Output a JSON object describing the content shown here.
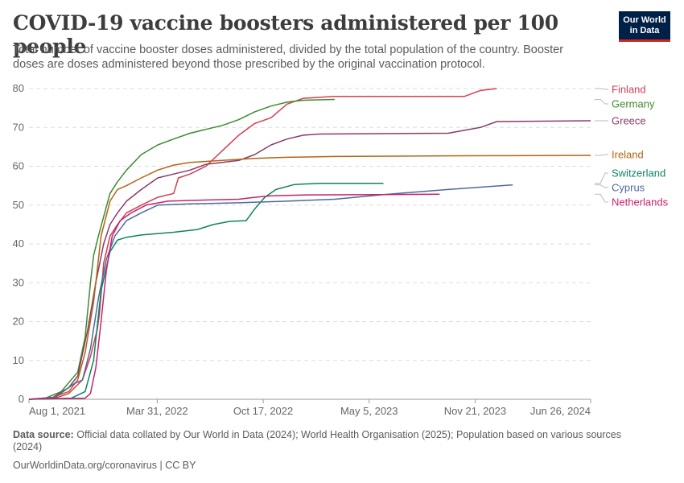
{
  "header": {
    "title": "COVID-19 vaccine boosters administered per 100 people",
    "subtitle": "Total number of vaccine booster doses administered, divided by the total population of the country. Booster doses are doses administered beyond those prescribed by the original vaccination protocol."
  },
  "logo": {
    "line1": "Our World",
    "line2": "in Data",
    "bg": "#002147",
    "accent": "#ce261e"
  },
  "footer": {
    "source_label": "Data source:",
    "source_text": "Official data collated by Our World in Data (2024); World Health Organisation (2025); Population based on various sources (2024)",
    "link": "OurWorldinData.org/coronavirus | CC BY"
  },
  "chart_data": {
    "type": "line",
    "x_axis": {
      "type": "date",
      "range": [
        "2021-08-01",
        "2024-06-26"
      ],
      "ticks": [
        "2021-08-01",
        "2022-03-31",
        "2022-10-17",
        "2023-05-05",
        "2023-11-21",
        "2024-06-26"
      ],
      "tick_labels": [
        "Aug 1, 2021",
        "Mar 31, 2022",
        "Oct 17, 2022",
        "May 5, 2023",
        "Nov 21, 2023",
        "Jun 26, 2024"
      ]
    },
    "y_axis": {
      "range": [
        0,
        80
      ],
      "ticks": [
        0,
        10,
        20,
        30,
        40,
        50,
        60,
        70,
        80
      ]
    },
    "grid": "horizontal-dashed",
    "legend": "right",
    "series": [
      {
        "name": "Finland",
        "color": "#d73c50",
        "points": [
          [
            "2021-08-01",
            0
          ],
          [
            "2021-09-20",
            0.3
          ],
          [
            "2021-10-15",
            1.5
          ],
          [
            "2021-11-10",
            5
          ],
          [
            "2021-11-25",
            11
          ],
          [
            "2021-12-08",
            18
          ],
          [
            "2021-12-12",
            22
          ],
          [
            "2021-12-20",
            35
          ],
          [
            "2022-01-01",
            42
          ],
          [
            "2022-01-15",
            45
          ],
          [
            "2022-02-01",
            48
          ],
          [
            "2022-03-01",
            50
          ],
          [
            "2022-04-01",
            52
          ],
          [
            "2022-05-01",
            53
          ],
          [
            "2022-05-10",
            57
          ],
          [
            "2022-06-01",
            58
          ],
          [
            "2022-07-01",
            60
          ],
          [
            "2022-08-01",
            64
          ],
          [
            "2022-09-01",
            68
          ],
          [
            "2022-10-01",
            71
          ],
          [
            "2022-11-01",
            72.5
          ],
          [
            "2022-12-01",
            76
          ],
          [
            "2023-01-01",
            77.5
          ],
          [
            "2023-03-01",
            78
          ],
          [
            "2023-11-01",
            78
          ],
          [
            "2023-12-01",
            79.5
          ],
          [
            "2024-01-01",
            80
          ]
        ]
      },
      {
        "name": "Germany",
        "color": "#3c8c2c",
        "points": [
          [
            "2021-08-01",
            0
          ],
          [
            "2021-09-01",
            0.3
          ],
          [
            "2021-10-01",
            2
          ],
          [
            "2021-11-01",
            7
          ],
          [
            "2021-11-15",
            16
          ],
          [
            "2021-11-25",
            30
          ],
          [
            "2021-12-01",
            37
          ],
          [
            "2021-12-10",
            42
          ],
          [
            "2021-12-20",
            47
          ],
          [
            "2022-01-01",
            53
          ],
          [
            "2022-01-15",
            56
          ],
          [
            "2022-02-01",
            59
          ],
          [
            "2022-03-01",
            63
          ],
          [
            "2022-04-01",
            65.5
          ],
          [
            "2022-05-01",
            67
          ],
          [
            "2022-06-01",
            68.5
          ],
          [
            "2022-07-01",
            69.5
          ],
          [
            "2022-08-01",
            70.5
          ],
          [
            "2022-09-01",
            72
          ],
          [
            "2022-10-01",
            74
          ],
          [
            "2022-11-01",
            75.5
          ],
          [
            "2022-12-01",
            76.5
          ],
          [
            "2023-01-01",
            77
          ],
          [
            "2023-03-01",
            77.2
          ]
        ]
      },
      {
        "name": "Greece",
        "color": "#883c6c",
        "points": [
          [
            "2021-08-01",
            0
          ],
          [
            "2021-09-15",
            0.5
          ],
          [
            "2021-10-15",
            3
          ],
          [
            "2021-11-01",
            6
          ],
          [
            "2021-11-20",
            18
          ],
          [
            "2021-12-05",
            30
          ],
          [
            "2021-12-20",
            40
          ],
          [
            "2022-01-01",
            45
          ],
          [
            "2022-01-15",
            48
          ],
          [
            "2022-02-01",
            51
          ],
          [
            "2022-03-01",
            54
          ],
          [
            "2022-04-01",
            57
          ],
          [
            "2022-05-01",
            58
          ],
          [
            "2022-06-01",
            59
          ],
          [
            "2022-07-01",
            60.5
          ],
          [
            "2022-08-01",
            61
          ],
          [
            "2022-09-01",
            61.5
          ],
          [
            "2022-10-01",
            63
          ],
          [
            "2022-11-01",
            65.5
          ],
          [
            "2022-12-01",
            67
          ],
          [
            "2023-01-01",
            68
          ],
          [
            "2023-02-01",
            68.3
          ],
          [
            "2023-06-01",
            68.4
          ],
          [
            "2023-10-01",
            68.5
          ],
          [
            "2023-12-01",
            70
          ],
          [
            "2024-01-01",
            71.5
          ],
          [
            "2024-06-26",
            71.7
          ]
        ]
      },
      {
        "name": "Ireland",
        "color": "#b46414",
        "points": [
          [
            "2021-08-01",
            0
          ],
          [
            "2021-09-15",
            0.5
          ],
          [
            "2021-10-15",
            2
          ],
          [
            "2021-11-01",
            5
          ],
          [
            "2021-11-15",
            12
          ],
          [
            "2021-12-01",
            25
          ],
          [
            "2021-12-15",
            42
          ],
          [
            "2022-01-01",
            51
          ],
          [
            "2022-01-15",
            54
          ],
          [
            "2022-02-01",
            55
          ],
          [
            "2022-03-01",
            57
          ],
          [
            "2022-04-01",
            59
          ],
          [
            "2022-05-01",
            60.3
          ],
          [
            "2022-06-01",
            61
          ],
          [
            "2022-08-01",
            61.5
          ],
          [
            "2022-10-01",
            62
          ],
          [
            "2022-12-01",
            62.3
          ],
          [
            "2023-03-01",
            62.5
          ],
          [
            "2023-11-01",
            62.7
          ],
          [
            "2024-06-26",
            62.8
          ]
        ]
      },
      {
        "name": "Switzerland",
        "color": "#0f8262",
        "points": [
          [
            "2021-08-01",
            0
          ],
          [
            "2021-10-20",
            0.3
          ],
          [
            "2021-11-15",
            2
          ],
          [
            "2021-12-01",
            10
          ],
          [
            "2021-12-15",
            28
          ],
          [
            "2022-01-01",
            38
          ],
          [
            "2022-01-15",
            41
          ],
          [
            "2022-02-01",
            41.7
          ],
          [
            "2022-03-01",
            42.3
          ],
          [
            "2022-05-01",
            43
          ],
          [
            "2022-06-15",
            43.7
          ],
          [
            "2022-07-15",
            45
          ],
          [
            "2022-08-15",
            45.8
          ],
          [
            "2022-09-15",
            46
          ],
          [
            "2022-10-01",
            49
          ],
          [
            "2022-10-20",
            52
          ],
          [
            "2022-11-10",
            54
          ],
          [
            "2022-12-15",
            55.3
          ],
          [
            "2023-02-01",
            55.6
          ],
          [
            "2023-06-01",
            55.6
          ]
        ]
      },
      {
        "name": "Cyprus",
        "color": "#4c6a9c",
        "points": [
          [
            "2021-08-01",
            0
          ],
          [
            "2021-09-20",
            0.5
          ],
          [
            "2021-10-10",
            2.5
          ],
          [
            "2021-10-25",
            4
          ],
          [
            "2021-11-10",
            5
          ],
          [
            "2021-11-25",
            13
          ],
          [
            "2021-12-10",
            26
          ],
          [
            "2021-12-25",
            36
          ],
          [
            "2022-01-10",
            42
          ],
          [
            "2022-02-01",
            46
          ],
          [
            "2022-03-01",
            48
          ],
          [
            "2022-04-01",
            50
          ],
          [
            "2022-06-01",
            50.3
          ],
          [
            "2022-09-01",
            50.6
          ],
          [
            "2022-12-01",
            51
          ],
          [
            "2023-03-01",
            51.5
          ],
          [
            "2023-06-01",
            52.7
          ],
          [
            "2023-10-01",
            54
          ],
          [
            "2024-01-31",
            55.2
          ]
        ]
      },
      {
        "name": "Netherlands",
        "color": "#c4236f",
        "points": [
          [
            "2021-08-01",
            0
          ],
          [
            "2021-11-15",
            0.3
          ],
          [
            "2021-11-25",
            1.5
          ],
          [
            "2021-12-05",
            8
          ],
          [
            "2021-12-15",
            20
          ],
          [
            "2021-12-25",
            33
          ],
          [
            "2022-01-05",
            42
          ],
          [
            "2022-01-20",
            46
          ],
          [
            "2022-02-10",
            48
          ],
          [
            "2022-03-10",
            50
          ],
          [
            "2022-04-20",
            51
          ],
          [
            "2022-06-01",
            51.2
          ],
          [
            "2022-09-01",
            51.5
          ],
          [
            "2022-10-01",
            52
          ],
          [
            "2022-11-01",
            52.4
          ],
          [
            "2023-01-01",
            52.6
          ],
          [
            "2023-06-01",
            52.7
          ],
          [
            "2023-09-15",
            52.8
          ]
        ]
      }
    ]
  }
}
